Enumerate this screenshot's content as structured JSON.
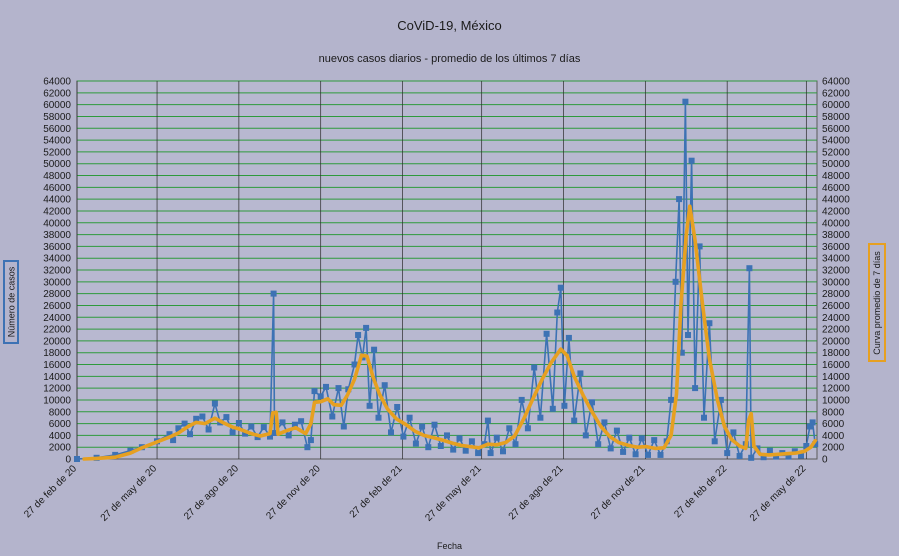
{
  "chart_data": {
    "type": "line",
    "title": "CoViD-19, México",
    "subtitle": "nuevos casos diarios - promedio de los últimos 7 días",
    "xlabel": "Fecha",
    "ylabel_left": "Número de casos",
    "ylabel_right": "Curva promedio de 7 días",
    "ylim": [
      0,
      64000
    ],
    "y_ticks": [
      0,
      2000,
      4000,
      6000,
      8000,
      10000,
      12000,
      14000,
      16000,
      18000,
      20000,
      22000,
      24000,
      26000,
      28000,
      30000,
      32000,
      34000,
      36000,
      38000,
      40000,
      42000,
      44000,
      46000,
      48000,
      50000,
      52000,
      54000,
      56000,
      58000,
      60000,
      62000,
      64000
    ],
    "x_range": [
      "2020-02-27",
      "2022-06-08"
    ],
    "x_ticks": [
      {
        "date": "2020-02-27",
        "label": "27 de feb de 20"
      },
      {
        "date": "2020-05-27",
        "label": "27 de may de 20"
      },
      {
        "date": "2020-08-27",
        "label": "27 de ago de 20"
      },
      {
        "date": "2020-11-27",
        "label": "27 de nov de 20"
      },
      {
        "date": "2021-02-27",
        "label": "27 de feb de 21"
      },
      {
        "date": "2021-05-27",
        "label": "27 de may de 21"
      },
      {
        "date": "2021-08-27",
        "label": "27 de ago de 21"
      },
      {
        "date": "2021-11-27",
        "label": "27 de nov de 21"
      },
      {
        "date": "2022-02-27",
        "label": "27 de feb de 22"
      },
      {
        "date": "2022-05-27",
        "label": "27 de may de 22"
      }
    ],
    "grid": true,
    "series": [
      {
        "name": "nuevos casos diarios",
        "color": "#3d72b4",
        "points": [
          [
            "2020-02-27",
            0
          ],
          [
            "2020-03-20",
            200
          ],
          [
            "2020-04-10",
            700
          ],
          [
            "2020-04-27",
            1400
          ],
          [
            "2020-05-10",
            2000
          ],
          [
            "2020-05-27",
            3000
          ],
          [
            "2020-06-10",
            4200
          ],
          [
            "2020-06-14",
            3200
          ],
          [
            "2020-06-20",
            5200
          ],
          [
            "2020-06-27",
            6000
          ],
          [
            "2020-07-03",
            4200
          ],
          [
            "2020-07-10",
            6800
          ],
          [
            "2020-07-17",
            7200
          ],
          [
            "2020-07-24",
            5000
          ],
          [
            "2020-07-31",
            9400
          ],
          [
            "2020-08-06",
            6200
          ],
          [
            "2020-08-13",
            7100
          ],
          [
            "2020-08-20",
            4500
          ],
          [
            "2020-08-27",
            6100
          ],
          [
            "2020-09-03",
            4300
          ],
          [
            "2020-09-10",
            5500
          ],
          [
            "2020-09-17",
            3700
          ],
          [
            "2020-09-24",
            5400
          ],
          [
            "2020-10-01",
            3800
          ],
          [
            "2020-10-05",
            28000
          ],
          [
            "2020-10-06",
            4400
          ],
          [
            "2020-10-15",
            6200
          ],
          [
            "2020-10-22",
            4000
          ],
          [
            "2020-10-29",
            5800
          ],
          [
            "2020-11-05",
            6400
          ],
          [
            "2020-11-12",
            2000
          ],
          [
            "2020-11-16",
            3200
          ],
          [
            "2020-11-20",
            11500
          ],
          [
            "2020-11-27",
            10600
          ],
          [
            "2020-12-03",
            12200
          ],
          [
            "2020-12-10",
            7200
          ],
          [
            "2020-12-17",
            12000
          ],
          [
            "2020-12-23",
            5500
          ],
          [
            "2020-12-28",
            11800
          ],
          [
            "2021-01-04",
            16000
          ],
          [
            "2021-01-08",
            21000
          ],
          [
            "2021-01-13",
            17200
          ],
          [
            "2021-01-17",
            22200
          ],
          [
            "2021-01-21",
            9000
          ],
          [
            "2021-01-26",
            18500
          ],
          [
            "2021-01-31",
            7000
          ],
          [
            "2021-02-07",
            12500
          ],
          [
            "2021-02-14",
            4500
          ],
          [
            "2021-02-21",
            8800
          ],
          [
            "2021-02-28",
            3800
          ],
          [
            "2021-03-07",
            7000
          ],
          [
            "2021-03-14",
            2600
          ],
          [
            "2021-03-21",
            5500
          ],
          [
            "2021-03-28",
            2000
          ],
          [
            "2021-04-04",
            5800
          ],
          [
            "2021-04-11",
            2200
          ],
          [
            "2021-04-18",
            4000
          ],
          [
            "2021-04-25",
            1600
          ],
          [
            "2021-05-02",
            3500
          ],
          [
            "2021-05-09",
            1400
          ],
          [
            "2021-05-16",
            3000
          ],
          [
            "2021-05-23",
            1000
          ],
          [
            "2021-05-30",
            2500
          ],
          [
            "2021-06-03",
            6500
          ],
          [
            "2021-06-06",
            1000
          ],
          [
            "2021-06-13",
            3600
          ],
          [
            "2021-06-20",
            1300
          ],
          [
            "2021-06-27",
            5200
          ],
          [
            "2021-07-04",
            2500
          ],
          [
            "2021-07-11",
            10000
          ],
          [
            "2021-07-18",
            5200
          ],
          [
            "2021-07-25",
            15500
          ],
          [
            "2021-08-01",
            7000
          ],
          [
            "2021-08-08",
            21200
          ],
          [
            "2021-08-15",
            8500
          ],
          [
            "2021-08-20",
            24800
          ],
          [
            "2021-08-24",
            29000
          ],
          [
            "2021-08-28",
            9000
          ],
          [
            "2021-09-02",
            20500
          ],
          [
            "2021-09-08",
            6500
          ],
          [
            "2021-09-15",
            14500
          ],
          [
            "2021-09-21",
            4000
          ],
          [
            "2021-09-28",
            9600
          ],
          [
            "2021-10-05",
            2500
          ],
          [
            "2021-10-12",
            6200
          ],
          [
            "2021-10-19",
            1800
          ],
          [
            "2021-10-26",
            4800
          ],
          [
            "2021-11-02",
            1200
          ],
          [
            "2021-11-09",
            3600
          ],
          [
            "2021-11-16",
            800
          ],
          [
            "2021-11-23",
            3500
          ],
          [
            "2021-11-30",
            700
          ],
          [
            "2021-12-07",
            3200
          ],
          [
            "2021-12-14",
            700
          ],
          [
            "2021-12-21",
            3000
          ],
          [
            "2021-12-26",
            10000
          ],
          [
            "2021-12-31",
            30000
          ],
          [
            "2022-01-04",
            44000
          ],
          [
            "2022-01-07",
            18000
          ],
          [
            "2022-01-11",
            60500
          ],
          [
            "2022-01-14",
            21000
          ],
          [
            "2022-01-18",
            50500
          ],
          [
            "2022-01-22",
            12000
          ],
          [
            "2022-01-27",
            36000
          ],
          [
            "2022-02-01",
            7000
          ],
          [
            "2022-02-07",
            23000
          ],
          [
            "2022-02-13",
            3000
          ],
          [
            "2022-02-20",
            10000
          ],
          [
            "2022-02-27",
            1000
          ],
          [
            "2022-03-06",
            4500
          ],
          [
            "2022-03-13",
            500
          ],
          [
            "2022-03-20",
            2500
          ],
          [
            "2022-03-24",
            32300
          ],
          [
            "2022-03-26",
            200
          ],
          [
            "2022-04-02",
            1800
          ],
          [
            "2022-04-09",
            300
          ],
          [
            "2022-04-16",
            1400
          ],
          [
            "2022-04-23",
            400
          ],
          [
            "2022-04-30",
            1000
          ],
          [
            "2022-05-07",
            400
          ],
          [
            "2022-05-14",
            1300
          ],
          [
            "2022-05-21",
            600
          ],
          [
            "2022-05-27",
            2200
          ],
          [
            "2022-05-31",
            5500
          ],
          [
            "2022-06-03",
            6200
          ],
          [
            "2022-06-06",
            2500
          ]
        ]
      },
      {
        "name": "promedio de 7 días",
        "color": "#e6a021",
        "points": [
          [
            "2020-03-06",
            0
          ],
          [
            "2020-03-20",
            100
          ],
          [
            "2020-04-10",
            300
          ],
          [
            "2020-04-27",
            1000
          ],
          [
            "2020-05-10",
            1900
          ],
          [
            "2020-05-27",
            2900
          ],
          [
            "2020-06-10",
            3700
          ],
          [
            "2020-06-20",
            4400
          ],
          [
            "2020-07-01",
            5500
          ],
          [
            "2020-07-10",
            6200
          ],
          [
            "2020-07-20",
            6000
          ],
          [
            "2020-07-31",
            6900
          ],
          [
            "2020-08-10",
            6100
          ],
          [
            "2020-08-20",
            5400
          ],
          [
            "2020-08-27",
            5100
          ],
          [
            "2020-09-10",
            4300
          ],
          [
            "2020-09-20",
            3900
          ],
          [
            "2020-10-01",
            4300
          ],
          [
            "2020-10-04",
            7800
          ],
          [
            "2020-10-08",
            7900
          ],
          [
            "2020-10-10",
            4200
          ],
          [
            "2020-10-20",
            4800
          ],
          [
            "2020-10-30",
            5300
          ],
          [
            "2020-11-10",
            4300
          ],
          [
            "2020-11-16",
            6000
          ],
          [
            "2020-11-20",
            9600
          ],
          [
            "2020-11-27",
            9700
          ],
          [
            "2020-12-05",
            10200
          ],
          [
            "2020-12-12",
            9200
          ],
          [
            "2020-12-20",
            9100
          ],
          [
            "2020-12-27",
            10800
          ],
          [
            "2021-01-04",
            13500
          ],
          [
            "2021-01-12",
            17600
          ],
          [
            "2021-01-18",
            17400
          ],
          [
            "2021-01-25",
            13800
          ],
          [
            "2021-02-01",
            11000
          ],
          [
            "2021-02-10",
            8500
          ],
          [
            "2021-02-20",
            6800
          ],
          [
            "2021-03-03",
            5800
          ],
          [
            "2021-03-13",
            4700
          ],
          [
            "2021-03-23",
            4000
          ],
          [
            "2021-04-03",
            3600
          ],
          [
            "2021-04-13",
            3200
          ],
          [
            "2021-04-24",
            2700
          ],
          [
            "2021-05-04",
            2300
          ],
          [
            "2021-05-14",
            2100
          ],
          [
            "2021-05-24",
            1900
          ],
          [
            "2021-06-03",
            2500
          ],
          [
            "2021-06-13",
            2400
          ],
          [
            "2021-06-23",
            2800
          ],
          [
            "2021-07-03",
            3900
          ],
          [
            "2021-07-13",
            6700
          ],
          [
            "2021-07-23",
            10000
          ],
          [
            "2021-08-03",
            13500
          ],
          [
            "2021-08-13",
            16300
          ],
          [
            "2021-08-24",
            18600
          ],
          [
            "2021-08-31",
            17500
          ],
          [
            "2021-09-08",
            14000
          ],
          [
            "2021-09-18",
            10800
          ],
          [
            "2021-09-28",
            8000
          ],
          [
            "2021-10-08",
            5500
          ],
          [
            "2021-10-18",
            3800
          ],
          [
            "2021-10-28",
            2800
          ],
          [
            "2021-11-08",
            2300
          ],
          [
            "2021-11-18",
            2000
          ],
          [
            "2021-11-28",
            2100
          ],
          [
            "2021-12-08",
            1800
          ],
          [
            "2021-12-18",
            1900
          ],
          [
            "2021-12-26",
            4000
          ],
          [
            "2022-01-01",
            11000
          ],
          [
            "2022-01-06",
            26000
          ],
          [
            "2022-01-12",
            38000
          ],
          [
            "2022-01-16",
            42800
          ],
          [
            "2022-01-22",
            37000
          ],
          [
            "2022-01-30",
            26500
          ],
          [
            "2022-02-07",
            17000
          ],
          [
            "2022-02-16",
            10000
          ],
          [
            "2022-02-24",
            5500
          ],
          [
            "2022-03-04",
            3300
          ],
          [
            "2022-03-13",
            2200
          ],
          [
            "2022-03-20",
            1800
          ],
          [
            "2022-03-23",
            6500
          ],
          [
            "2022-03-26",
            7700
          ],
          [
            "2022-03-29",
            2200
          ],
          [
            "2022-04-05",
            800
          ],
          [
            "2022-04-15",
            700
          ],
          [
            "2022-04-25",
            800
          ],
          [
            "2022-05-05",
            900
          ],
          [
            "2022-05-15",
            1000
          ],
          [
            "2022-05-25",
            1300
          ],
          [
            "2022-06-01",
            2000
          ],
          [
            "2022-06-06",
            3100
          ]
        ]
      }
    ]
  }
}
